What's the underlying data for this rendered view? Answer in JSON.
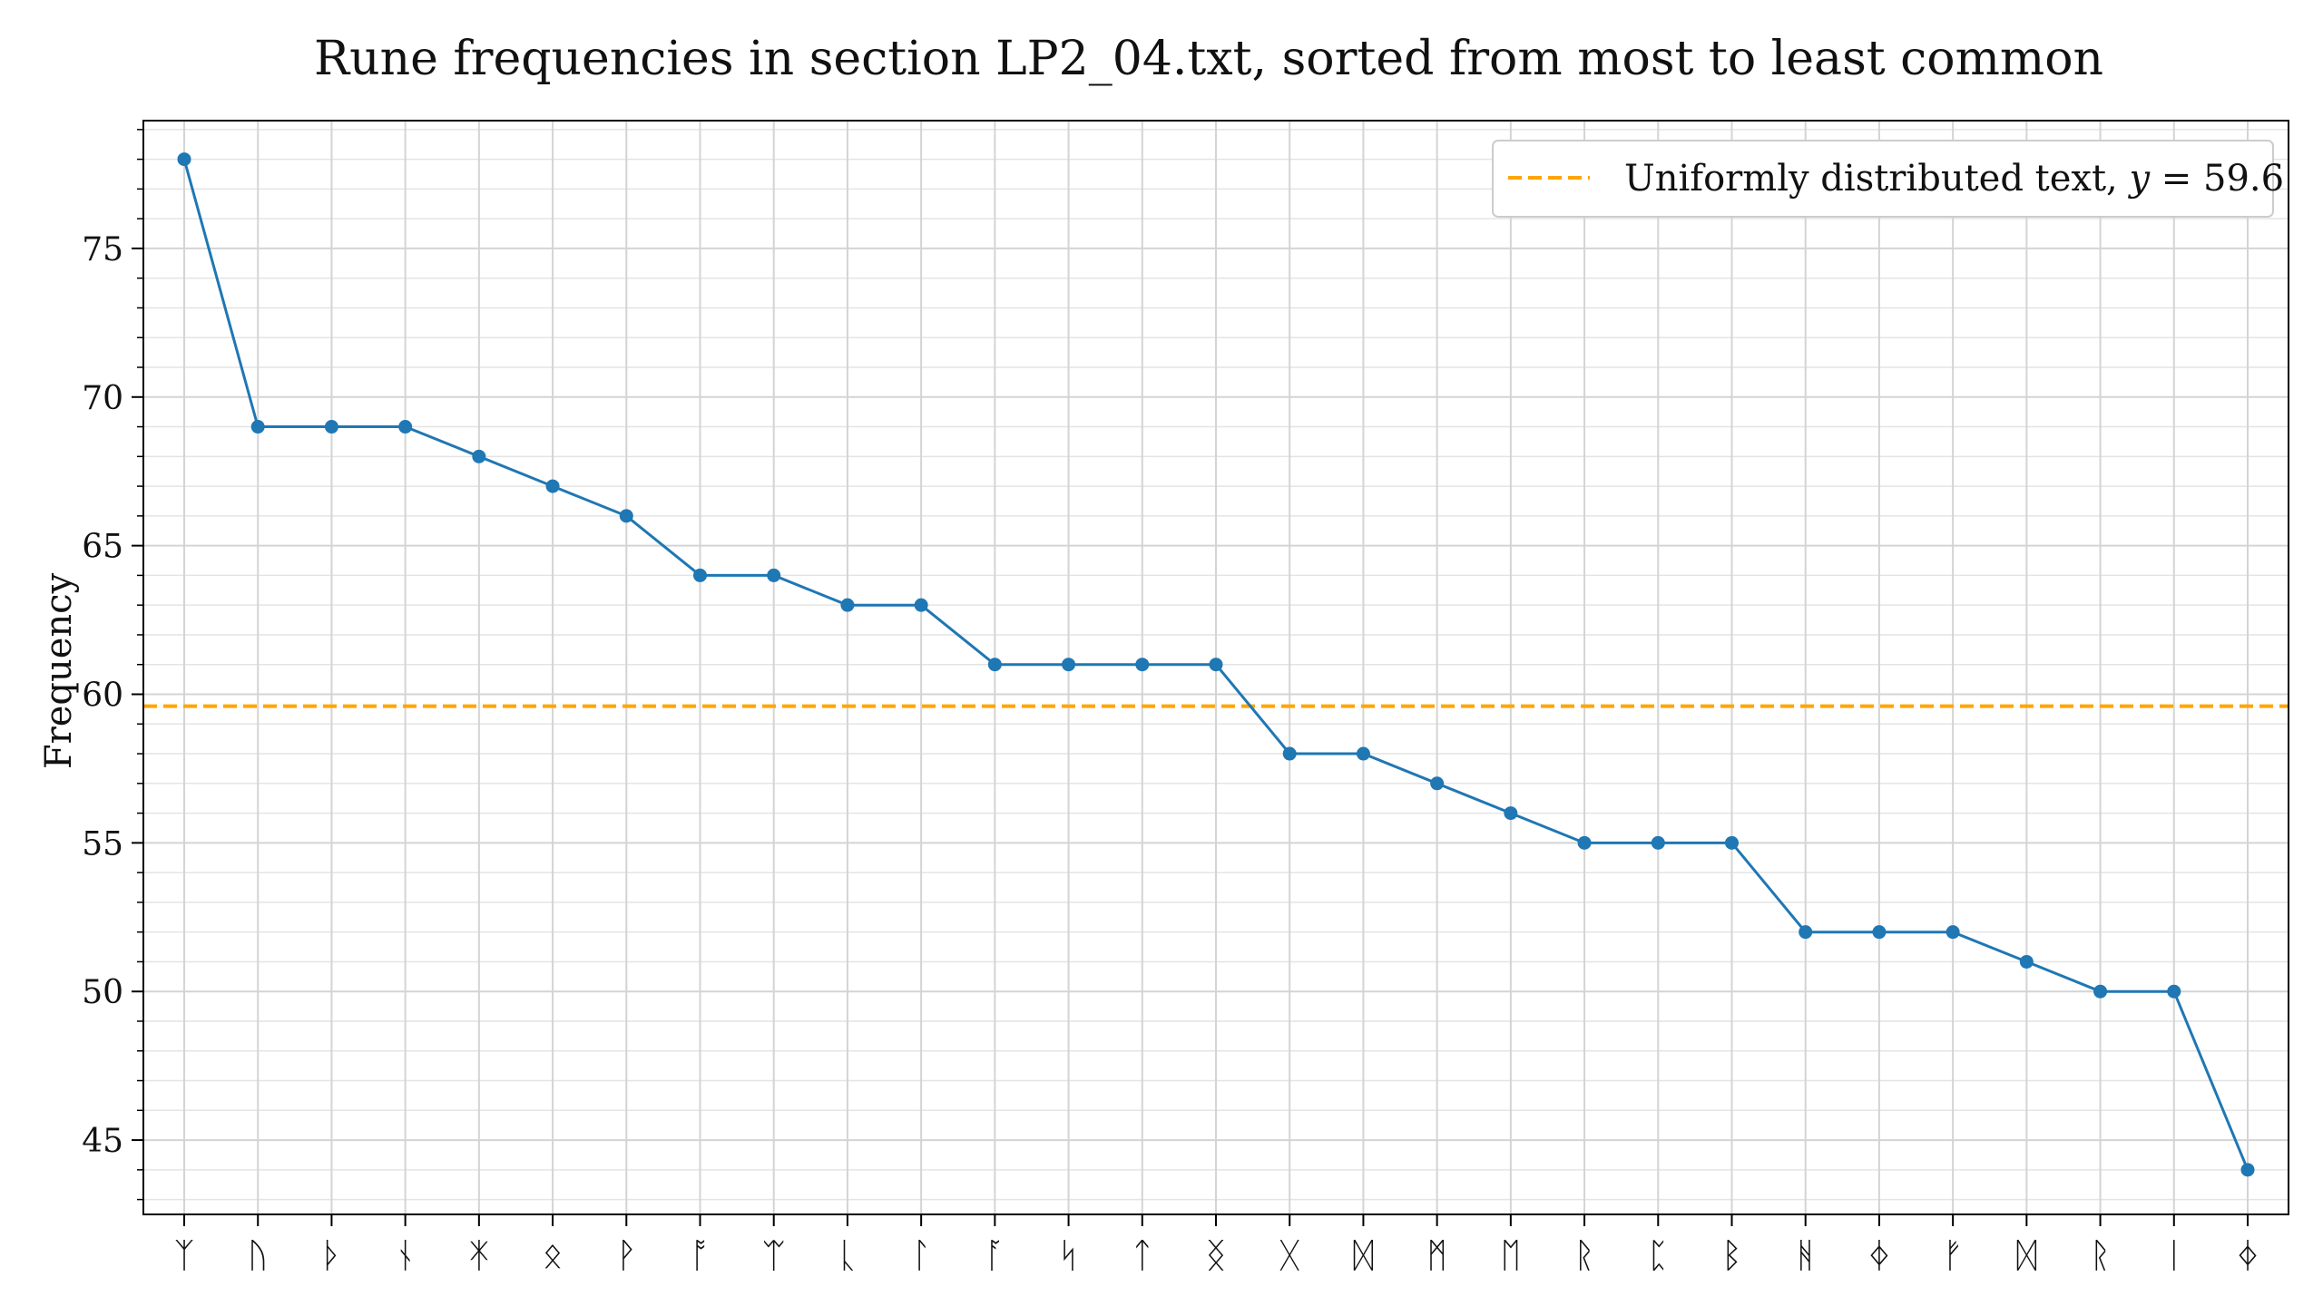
{
  "chart_data": {
    "type": "line",
    "title": "Rune frequencies in section LP2_04.txt, sorted from most to least common",
    "xlabel": "",
    "ylabel": "Frequency",
    "ylim": [
      42.5,
      79.3
    ],
    "yticks": [
      45,
      50,
      55,
      60,
      65,
      70,
      75
    ],
    "grid": true,
    "minor_grid": true,
    "legend_placement": "top-right",
    "categories": [
      "ᛉ",
      "ᚢ",
      "ᚦ",
      "ᚾ",
      "ᛡ",
      "ᛟ",
      "ᚹ",
      "ᚩ",
      "ᛠ",
      "ᚳ",
      "ᛚ",
      "ᚪ",
      "ᛋ",
      "ᛏ",
      "ᛝ",
      "ᚷ",
      "ᛞ",
      "ᛗ",
      "ᛖ",
      "ᚱ",
      "ᛈ",
      "ᛒ",
      "ᚻ",
      "ᛄ",
      "ᚠ",
      "ᛞ",
      "ᚱ",
      "ᛁ",
      "ᛄ"
    ],
    "series": [
      {
        "name": "",
        "color": "#1f77b4",
        "values": [
          78,
          69,
          69,
          69,
          68,
          67,
          66,
          64,
          64,
          63,
          63,
          61,
          61,
          61,
          61,
          58,
          58,
          57,
          56,
          55,
          55,
          55,
          52,
          52,
          52,
          51,
          50,
          50,
          44
        ]
      }
    ],
    "reference_line": {
      "label_prefix": "Uniformly distributed text, ",
      "label_var": "y",
      "label_eq": " = 59.6",
      "y": 59.6,
      "color": "#ffa500",
      "style": "dashed"
    }
  }
}
